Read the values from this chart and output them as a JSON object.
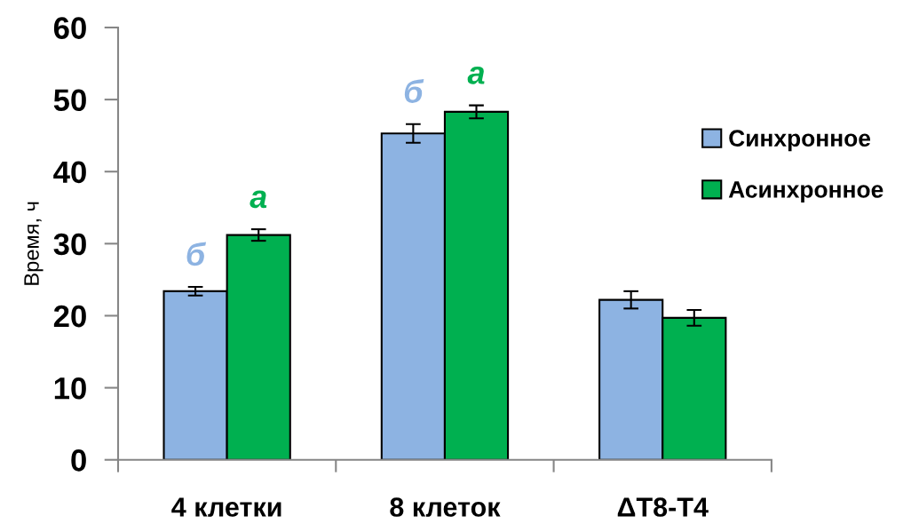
{
  "chart_data": {
    "type": "bar",
    "ylabel": "Время, ч",
    "categories": [
      "4 клетки",
      "8 клеток",
      "ΔT8-T4"
    ],
    "series": [
      {
        "name": "Синхронное",
        "color": "#8db3e2",
        "values": [
          23.4,
          45.3,
          22.2
        ],
        "errors": [
          0.6,
          1.3,
          1.2
        ],
        "value_labels": [
          "б",
          "б",
          null
        ]
      },
      {
        "name": "Асинхронное",
        "color": "#00b050",
        "values": [
          31.2,
          48.3,
          19.7
        ],
        "errors": [
          0.8,
          0.9,
          1.1
        ],
        "value_labels": [
          "а",
          "а",
          null
        ]
      }
    ],
    "ylim": [
      0,
      60
    ],
    "yticks": [
      0,
      10,
      20,
      30,
      40,
      50,
      60
    ],
    "grid": false,
    "legend": "right"
  }
}
